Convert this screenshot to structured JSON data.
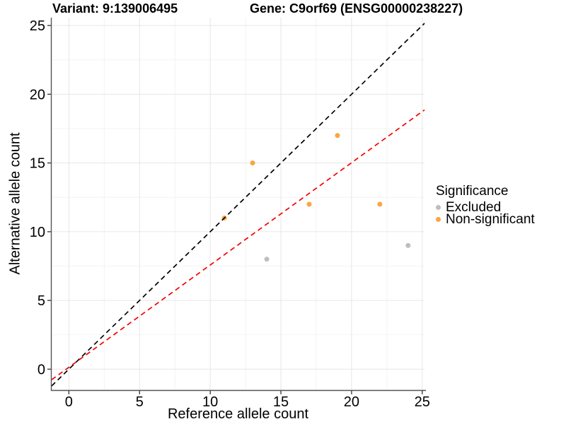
{
  "page": {
    "background": "#ffffff"
  },
  "chart_data": {
    "type": "scatter",
    "title_left": "Variant: 9:139006495",
    "title_right": "Gene: C9orf69 (ENSG00000238227)",
    "xlabel": "Reference allele count",
    "ylabel": "Alternative allele count",
    "xlim": [
      -1.22,
      25.16
    ],
    "ylim": [
      -1.52,
      25.57
    ],
    "xticks": [
      0,
      5,
      10,
      15,
      20,
      25
    ],
    "yticks": [
      0,
      5,
      10,
      15,
      20,
      25
    ],
    "minor_ticks_x": [
      2.5,
      7.5,
      12.5,
      17.5,
      22.5
    ],
    "minor_ticks_y": [
      2.5,
      7.5,
      12.5,
      17.5,
      22.5
    ],
    "grid": {
      "major_color": "#e6e6e6",
      "minor_color": "#f3f3f3",
      "show": true
    },
    "axis_color": "#555555",
    "text_color": "#000000",
    "legend": {
      "title": "Significance",
      "position": "right"
    },
    "series": [
      {
        "name": "Excluded",
        "color": "#bebebe",
        "points": [
          [
            14,
            8
          ],
          [
            24,
            9
          ]
        ]
      },
      {
        "name": "Non-significant",
        "color": "#f9a643",
        "points": [
          [
            11,
            11
          ],
          [
            13,
            15
          ],
          [
            17,
            12
          ],
          [
            19,
            17
          ],
          [
            22,
            12
          ]
        ]
      }
    ],
    "lines": [
      {
        "name": "identity",
        "slope": 1.0,
        "intercept": 0.0,
        "color": "#000000",
        "style": "dashed"
      },
      {
        "name": "fit",
        "slope": 0.744,
        "intercept": 0.14,
        "color": "#f50000",
        "style": "dashed"
      }
    ]
  }
}
